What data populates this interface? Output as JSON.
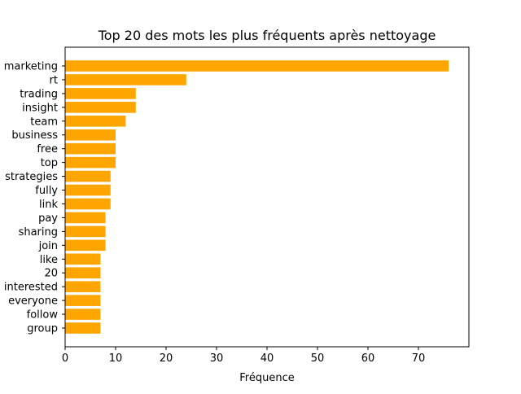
{
  "chart_data": {
    "type": "bar",
    "orientation": "horizontal",
    "title": "Top 20 des mots les plus fréquents après nettoyage",
    "xlabel": "Fréquence",
    "ylabel": "",
    "xlim": [
      0,
      80
    ],
    "xticks": [
      0,
      10,
      20,
      30,
      40,
      50,
      60,
      70
    ],
    "grid": false,
    "bar_color": "#ffa500",
    "categories": [
      "marketing",
      "rt",
      "trading",
      "insight",
      "team",
      "business",
      "free",
      "top",
      "strategies",
      "fully",
      "link",
      "pay",
      "sharing",
      "join",
      "like",
      "20",
      "interested",
      "everyone",
      "follow",
      "group"
    ],
    "values": [
      76,
      24,
      14,
      14,
      12,
      10,
      10,
      10,
      9,
      9,
      9,
      8,
      8,
      8,
      7,
      7,
      7,
      7,
      7,
      7
    ]
  }
}
